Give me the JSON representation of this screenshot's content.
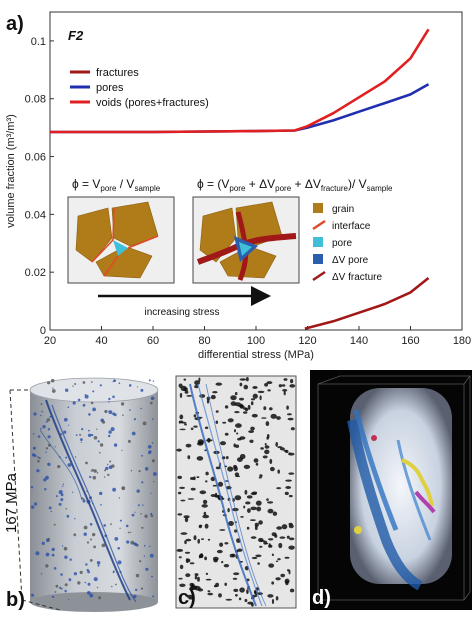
{
  "panels": {
    "a": "a)",
    "b": "b)",
    "c": "c)",
    "d": "d)"
  },
  "sample_label": "F2",
  "stress_label": "167 MPa",
  "formulas": {
    "left": "ϕ = V",
    "left_sub1": "pore",
    "left_mid": " / V",
    "left_sub2": "sample",
    "right_a": "ϕ = (V",
    "right_sub1": "pore",
    "right_b": " + ΔV",
    "right_sub2": "pore",
    "right_c": " + ΔV",
    "right_sub3": "fracture",
    "right_d": ")/ V",
    "right_sub4": "sample"
  },
  "schematic_legend": [
    {
      "label": "grain",
      "icon": "grain-swatch",
      "color": "#b07c1a"
    },
    {
      "label": "interface",
      "icon": "interface-line",
      "color": "#e04a2a"
    },
    {
      "label": "pore",
      "icon": "pore-swatch",
      "color": "#40c0d8"
    },
    {
      "label": "ΔV pore",
      "icon": "delta-pore-swatch",
      "color": "#2a5fb0"
    },
    {
      "label": "ΔV fracture",
      "icon": "fracture-line",
      "color": "#a01818"
    }
  ],
  "arrow_label": "increasing stress",
  "chart_data": {
    "type": "line",
    "xlabel": "differential stress (MPa)",
    "ylabel": "volume fraction (m³/m³)",
    "xlim": [
      20,
      180
    ],
    "ylim": [
      0,
      0.11
    ],
    "xticks": [
      "20",
      "40",
      "60",
      "80",
      "100",
      "120",
      "140",
      "160",
      "180"
    ],
    "yticks": [
      "0",
      "0.02",
      "0.04",
      "0.06",
      "0.08",
      "0.1"
    ],
    "legend_position": "top-left",
    "series": [
      {
        "name": "fractures",
        "color": "#a01818",
        "x": [
          119,
          130,
          140,
          150,
          160,
          167
        ],
        "y": [
          0.0005,
          0.003,
          0.006,
          0.009,
          0.013,
          0.018
        ]
      },
      {
        "name": "pores",
        "color": "#1f2fb0",
        "x": [
          20,
          60,
          100,
          115,
          120,
          130,
          140,
          150,
          160,
          167
        ],
        "y": [
          0.0685,
          0.0685,
          0.0688,
          0.069,
          0.07,
          0.0725,
          0.0755,
          0.0785,
          0.0815,
          0.085
        ]
      },
      {
        "name": "voids (pores+fractures)",
        "color": "#e02020",
        "x": [
          20,
          60,
          100,
          115,
          120,
          130,
          140,
          150,
          160,
          167
        ],
        "y": [
          0.0685,
          0.0685,
          0.0688,
          0.069,
          0.0705,
          0.075,
          0.0805,
          0.086,
          0.094,
          0.104
        ]
      }
    ]
  }
}
